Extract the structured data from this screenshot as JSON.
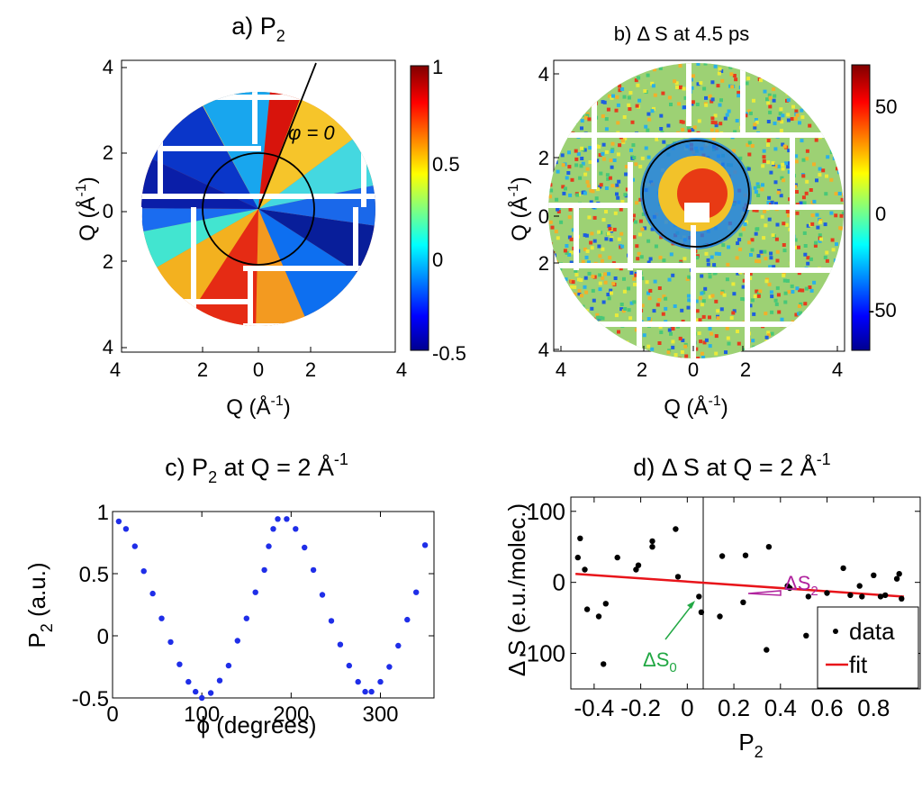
{
  "panels": {
    "a": {
      "title_prefix": "a) P",
      "title_sub": "2",
      "annotation": "φ = 0",
      "x_axis_label": "Q (Å",
      "x_axis_label_sup": "-1",
      "x_axis_label_close": ")",
      "y_axis_label": "Q (Å",
      "y_axis_label_sup": "-1",
      "y_axis_label_close": ")",
      "x_ticks": [
        "4",
        "2",
        "0",
        "2",
        "4"
      ],
      "y_ticks": [
        "4",
        "2",
        "0",
        "2",
        "4"
      ],
      "colorbar_ticks": [
        "1",
        "0.5",
        "0",
        "-0.5"
      ]
    },
    "b": {
      "title": "b) Δ S at 4.5 ps",
      "x_axis_label": "Q (Å",
      "x_axis_label_sup": "-1",
      "x_axis_label_close": ")",
      "y_axis_label": "Q (Å",
      "y_axis_label_sup": "-1",
      "y_axis_label_close": ")",
      "x_ticks": [
        "4",
        "2",
        "0",
        "2",
        "4"
      ],
      "y_ticks": [
        "4",
        "2",
        "0",
        "2",
        "4"
      ],
      "colorbar_ticks": [
        "50",
        "0",
        "-50"
      ]
    }
  },
  "chart_data": [
    {
      "panel": "c",
      "type": "scatter",
      "title_prefix": "c) P",
      "title_sub": "2",
      "title_mid": " at Q = 2 Å",
      "title_sup": "-1",
      "xlabel": "ϕ (degrees)",
      "ylabel_main": "P",
      "ylabel_sub": "2",
      "ylabel_unit": " (a.u.)",
      "xlim": [
        0,
        360
      ],
      "ylim": [
        -0.5,
        1
      ],
      "x_ticks": [
        0,
        100,
        200,
        300
      ],
      "y_ticks": [
        -0.5,
        0,
        0.5,
        1
      ],
      "y_tick_labels": [
        "-0.5",
        "0",
        "0.5",
        "1"
      ],
      "marker_color": "#1f2ee8",
      "x": [
        7,
        15,
        25,
        35,
        45,
        55,
        65,
        75,
        85,
        93,
        100,
        110,
        120,
        130,
        140,
        150,
        160,
        170,
        175,
        180,
        185,
        195,
        205,
        215,
        225,
        235,
        245,
        255,
        265,
        275,
        283,
        290,
        300,
        310,
        320,
        330,
        340,
        350
      ],
      "y": [
        0.92,
        0.86,
        0.72,
        0.52,
        0.34,
        0.14,
        -0.05,
        -0.23,
        -0.37,
        -0.45,
        -0.5,
        -0.46,
        -0.36,
        -0.24,
        -0.04,
        0.14,
        0.35,
        0.53,
        0.72,
        0.86,
        0.94,
        0.94,
        0.86,
        0.71,
        0.53,
        0.33,
        0.12,
        -0.07,
        -0.24,
        -0.37,
        -0.45,
        -0.45,
        -0.37,
        -0.25,
        -0.08,
        0.13,
        0.35,
        0.73
      ]
    },
    {
      "panel": "d",
      "type": "scatter",
      "title": "d) Δ S at Q = 2 Å",
      "title_sup": "-1",
      "xlabel_main": "P",
      "xlabel_sub": "2",
      "ylabel": "Δ S (e.u./molec.)",
      "xlim": [
        -0.5,
        1
      ],
      "ylim": [
        -150,
        120
      ],
      "x_ticks": [
        -0.4,
        -0.2,
        0,
        0.2,
        0.4,
        0.6,
        0.8
      ],
      "x_tick_labels": [
        "-0.4",
        "-0.2",
        "0",
        "0.2",
        "0.4",
        "0.6",
        "0.8"
      ],
      "y_ticks": [
        -100,
        0,
        100
      ],
      "y_tick_labels": [
        "-100",
        "0",
        "100"
      ],
      "data_color": "#000000",
      "fit_color": "#e8141a",
      "data": {
        "x": [
          -0.47,
          -0.46,
          -0.44,
          -0.43,
          -0.38,
          -0.36,
          -0.35,
          -0.3,
          -0.22,
          -0.21,
          -0.15,
          -0.15,
          -0.05,
          -0.04,
          0.05,
          0.06,
          0.14,
          0.15,
          0.24,
          0.25,
          0.34,
          0.35,
          0.43,
          0.44,
          0.51,
          0.52,
          0.6,
          0.62,
          0.67,
          0.7,
          0.74,
          0.75,
          0.8,
          0.83,
          0.85,
          0.88,
          0.9,
          0.91,
          0.92
        ],
        "y": [
          35,
          62,
          18,
          -38,
          -48,
          -115,
          -30,
          35,
          18,
          24,
          50,
          58,
          75,
          8,
          -20,
          -42,
          -48,
          37,
          -28,
          38,
          -95,
          50,
          -5,
          -8,
          -75,
          -20,
          -15,
          -82,
          20,
          -18,
          -5,
          -20,
          10,
          -20,
          -18,
          -50,
          5,
          12,
          -23
        ],
        "legend_label": "data"
      },
      "fit": {
        "x": [
          -0.48,
          0.93
        ],
        "y": [
          12,
          -20
        ],
        "legend_label": "fit"
      },
      "annotations": [
        {
          "text": "ΔS",
          "sub": "0",
          "color": "#22a844"
        },
        {
          "text": "ΔS",
          "sub": "2",
          "color": "#b0239e"
        }
      ]
    }
  ]
}
